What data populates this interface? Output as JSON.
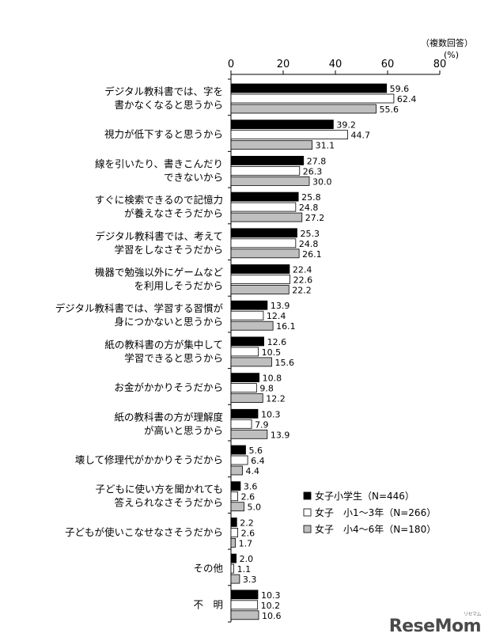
{
  "chart_data": {
    "type": "bar",
    "orientation": "horizontal",
    "unit_note": "（複数回答）",
    "unit": "(%)",
    "xlim": [
      0,
      80
    ],
    "xticks": [
      0,
      20,
      40,
      60,
      80
    ],
    "categories": [
      [
        "デジタル教科書では、字を",
        "書かなくなると思うから"
      ],
      [
        "視力が低下すると思うから"
      ],
      [
        "線を引いたり、書きこんだり",
        "できないから"
      ],
      [
        "すぐに検索できるので記憶力",
        "が養えなさそうだから"
      ],
      [
        "デジタル教科書では、考えて",
        "学習をしなさそうだから"
      ],
      [
        "機器で勉強以外にゲームなど",
        "を利用しそうだから"
      ],
      [
        "デジタル教科書では、学習する習慣が",
        "身につかないと思うから"
      ],
      [
        "紙の教科書の方が集中して",
        "学習できると思うから"
      ],
      [
        "お金がかかりそうだから"
      ],
      [
        "紙の教科書の方が理解度",
        "が高いと思うから"
      ],
      [
        "壊して修理代がかかりそうだから"
      ],
      [
        "子どもに使い方を聞かれても",
        "答えられなさそうだから"
      ],
      [
        "子どもが使いこなせなさそうだから"
      ],
      [
        "その他"
      ],
      [
        "不　明"
      ]
    ],
    "series": [
      {
        "name": "女子小学生（N=446）",
        "color": "#000000",
        "values": [
          59.6,
          39.2,
          27.8,
          25.8,
          25.3,
          22.4,
          13.9,
          12.6,
          10.8,
          10.3,
          5.6,
          3.6,
          2.2,
          2.0,
          10.3
        ]
      },
      {
        "name": "女子　小1～3年（N=266）",
        "color": "#ffffff",
        "values": [
          62.4,
          44.7,
          26.3,
          24.8,
          24.8,
          22.6,
          12.4,
          10.5,
          9.8,
          7.9,
          6.4,
          2.6,
          2.6,
          1.1,
          10.2
        ]
      },
      {
        "name": "女子　小4～6年（N=180）",
        "color": "#bfbfbf",
        "values": [
          55.6,
          31.1,
          30.0,
          27.2,
          26.1,
          22.2,
          16.1,
          15.6,
          12.2,
          13.9,
          4.4,
          5.0,
          1.7,
          3.3,
          10.6
        ]
      }
    ],
    "legend_position": "bottom-right"
  },
  "watermark": {
    "text": "ReseMom",
    "sub": "リセマム"
  }
}
